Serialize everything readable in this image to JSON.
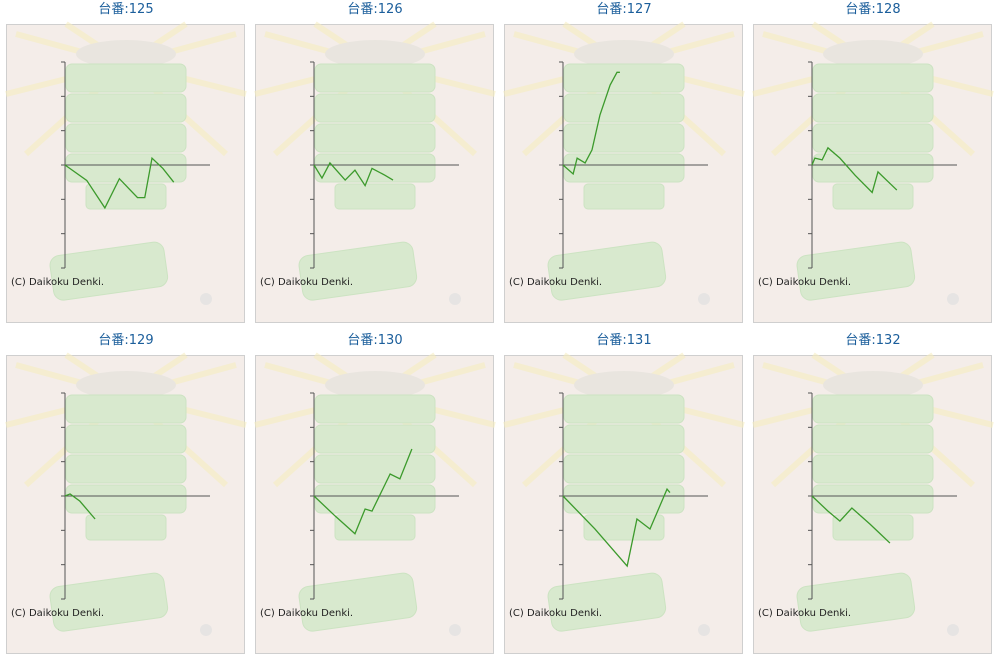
{
  "chart_data": [
    {
      "type": "line",
      "title": "台番:125",
      "annotation": "(C) Daikoku Denki.",
      "color": "#3c9a2c",
      "xlim": [
        0,
        40
      ],
      "ylim": [
        -3,
        3
      ],
      "yticks": [
        -3,
        -2,
        -1,
        0,
        1,
        2,
        3
      ],
      "x": [
        0,
        6,
        11,
        15,
        20,
        22,
        24,
        27,
        30
      ],
      "values": [
        0,
        -0.45,
        -1.25,
        -0.4,
        -0.95,
        -0.95,
        0.2,
        -0.1,
        -0.5
      ]
    },
    {
      "type": "line",
      "title": "台番:126",
      "annotation": "(C) Daikoku Denki.",
      "color": "#3c9a2c",
      "xlim": [
        0,
        40
      ],
      "ylim": [
        -3,
        3
      ],
      "yticks": [
        -3,
        -2,
        -1,
        0,
        1,
        2,
        3
      ],
      "x": [
        0,
        2.2,
        4.4,
        8.6,
        11.3,
        14.1,
        16,
        19.6,
        21.8
      ],
      "values": [
        0,
        -0.38,
        0.06,
        -0.44,
        -0.15,
        -0.6,
        -0.1,
        -0.3,
        -0.44
      ]
    },
    {
      "type": "line",
      "title": "台番:127",
      "annotation": "(C) Daikoku Denki.",
      "color": "#3c9a2c",
      "xlim": [
        0,
        40
      ],
      "ylim": [
        -3,
        3
      ],
      "yticks": [
        -3,
        -2,
        -1,
        0,
        1,
        2,
        3
      ],
      "x": [
        0,
        2.8,
        3.9,
        6.1,
        8,
        10.2,
        13,
        14.9,
        15.7
      ],
      "values": [
        0,
        -0.26,
        0.2,
        0.06,
        0.44,
        1.46,
        2.33,
        2.7,
        2.7
      ]
    },
    {
      "type": "line",
      "title": "台番:128",
      "annotation": "(C) Daikoku Denki.",
      "color": "#3c9a2c",
      "xlim": [
        0,
        40
      ],
      "ylim": [
        -3,
        3
      ],
      "yticks": [
        -3,
        -2,
        -1,
        0,
        1,
        2,
        3
      ],
      "x": [
        0,
        0.8,
        2.8,
        4.4,
        7.7,
        11.9,
        16.6,
        18.2,
        23.4
      ],
      "values": [
        0,
        0.2,
        0.15,
        0.5,
        0.2,
        -0.3,
        -0.8,
        -0.2,
        -0.73
      ]
    },
    {
      "type": "line",
      "title": "台番:129",
      "annotation": "(C) Daikoku Denki.",
      "color": "#3c9a2c",
      "xlim": [
        0,
        40
      ],
      "ylim": [
        -3,
        3
      ],
      "yticks": [
        -3,
        -2,
        -1,
        0,
        1,
        2,
        3
      ],
      "x": [
        0,
        1.4,
        4.1,
        8.3
      ],
      "values": [
        0,
        0.06,
        -0.15,
        -0.67
      ]
    },
    {
      "type": "line",
      "title": "台番:130",
      "annotation": "(C) Daikoku Denki.",
      "color": "#3c9a2c",
      "xlim": [
        0,
        40
      ],
      "ylim": [
        -3,
        3
      ],
      "yticks": [
        -3,
        -2,
        -1,
        0,
        1,
        2,
        3
      ],
      "x": [
        0,
        5.8,
        11.3,
        14.1,
        16,
        21,
        23.7,
        27
      ],
      "values": [
        0,
        -0.58,
        -1.1,
        -0.38,
        -0.44,
        0.64,
        0.5,
        1.37
      ]
    },
    {
      "type": "line",
      "title": "台番:131",
      "annotation": "(C) Daikoku Denki.",
      "color": "#3c9a2c",
      "xlim": [
        0,
        40
      ],
      "ylim": [
        -3,
        3
      ],
      "yticks": [
        -3,
        -2,
        -1,
        0,
        1,
        2,
        3
      ],
      "x": [
        0,
        8.8,
        17.7,
        20.4,
        24,
        28.7,
        29.5
      ],
      "values": [
        0,
        -0.96,
        -2.04,
        -0.67,
        -0.96,
        0.2,
        0.1
      ]
    },
    {
      "type": "line",
      "title": "台番:132",
      "annotation": "(C) Daikoku Denki.",
      "color": "#3c9a2c",
      "xlim": [
        0,
        40
      ],
      "ylim": [
        -3,
        3
      ],
      "yticks": [
        -3,
        -2,
        -1,
        0,
        1,
        2,
        3
      ],
      "x": [
        0,
        4.4,
        7.7,
        11,
        16,
        18.8,
        21.5
      ],
      "values": [
        0,
        -0.44,
        -0.73,
        -0.35,
        -0.82,
        -1.1,
        -1.37
      ]
    }
  ]
}
